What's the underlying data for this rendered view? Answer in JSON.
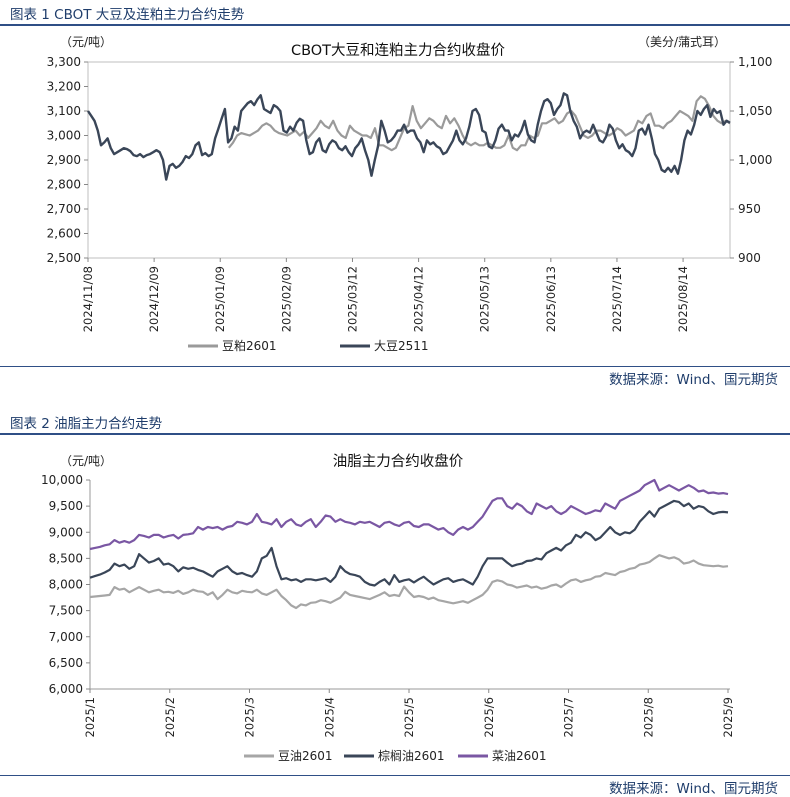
{
  "figure1": {
    "heading": "图表 1 CBOT 大豆及连粕主力合约走势",
    "source": "数据来源：Wind、国元期货"
  },
  "figure2": {
    "heading": "图表 2 油脂主力合约走势",
    "source": "数据来源：Wind、国元期货"
  },
  "chart_data": [
    {
      "type": "line",
      "title": "CBOT大豆和连粕主力合约收盘价",
      "ylabel_left": "（元/吨）",
      "ylabel_right": "（美分/蒲式耳）",
      "ylim_left": [
        2500,
        3300
      ],
      "ylim_right": [
        900,
        1100
      ],
      "yticks_left": [
        "2,500",
        "2,600",
        "2,700",
        "2,800",
        "2,900",
        "3,000",
        "3,100",
        "3,200",
        "3,300"
      ],
      "yticks_right": [
        "900",
        "950",
        "1,000",
        "1,050",
        "1,100"
      ],
      "x_tick_labels": [
        "2024/11/08",
        "2024/12/09",
        "2025/01/09",
        "2025/02/09",
        "2025/03/12",
        "2025/04/12",
        "2025/05/13",
        "2025/06/13",
        "2025/07/14",
        "2025/08/14"
      ],
      "grid": false,
      "legend_position": "bottom",
      "colors": {
        "豆粕2601": "#9a9a9a",
        "大豆2511": "#3a4658"
      },
      "series": [
        {
          "name": "豆粕2601",
          "axis": "left",
          "x_start": "2025-01-13",
          "values": [
            2950,
            2970,
            3000,
            3010,
            3005,
            3000,
            3010,
            3020,
            3040,
            3050,
            3040,
            3020,
            3010,
            3005,
            3000,
            3010,
            3020,
            3000,
            3015,
            2990,
            3010,
            3030,
            3060,
            3040,
            3030,
            3060,
            3020,
            3000,
            2990,
            3040,
            3020,
            3010,
            3000,
            3000,
            2990,
            3030,
            2960,
            2960,
            2950,
            2940,
            2950,
            2990,
            3030,
            3040,
            3120,
            3060,
            3030,
            3050,
            3070,
            3060,
            3040,
            3030,
            3080,
            3050,
            3070,
            3040,
            3000,
            2970,
            2960,
            2970,
            2960,
            2960,
            2970,
            2960,
            2950,
            2950,
            2960,
            3000,
            2950,
            2940,
            2960,
            2960,
            3000,
            2990,
            3000,
            3050,
            3050,
            3060,
            3070,
            3050,
            3060,
            3090,
            3100,
            3080,
            3040,
            3000,
            2990,
            3000,
            3020,
            3020,
            3010,
            3000,
            3010,
            3030,
            3020,
            3000,
            3010,
            3020,
            3060,
            3050,
            3080,
            3090,
            3040,
            3040,
            3030,
            3050,
            3060,
            3080,
            3100,
            3090,
            3080,
            3060,
            3140,
            3160,
            3150,
            3120,
            3080,
            3060,
            3050,
            3060,
            3050
          ]
        },
        {
          "name": "大豆2511",
          "axis": "right",
          "x_start": "2024-11-08",
          "values": [
            1050,
            1045,
            1040,
            1030,
            1015,
            1018,
            1022,
            1012,
            1006,
            1008,
            1010,
            1012,
            1011,
            1009,
            1005,
            1004,
            1006,
            1003,
            1005,
            1006,
            1008,
            1010,
            1008,
            1000,
            980,
            994,
            996,
            992,
            994,
            998,
            1004,
            1002,
            1006,
            1015,
            1018,
            1005,
            1007,
            1004,
            1006,
            1022,
            1032,
            1042,
            1052,
            1018,
            1022,
            1034,
            1030,
            1050,
            1054,
            1058,
            1060,
            1056,
            1062,
            1066,
            1052,
            1050,
            1048,
            1056,
            1054,
            1050,
            1030,
            1028,
            1034,
            1030,
            1038,
            1042,
            1040,
            1020,
            1006,
            1008,
            1018,
            1022,
            1010,
            1008,
            1016,
            1020,
            1018,
            1012,
            1010,
            1014,
            1008,
            1004,
            1012,
            1016,
            1022,
            1010,
            1000,
            984,
            1000,
            1014,
            1040,
            1030,
            1018,
            1020,
            1024,
            1030,
            1030,
            1036,
            1028,
            1030,
            1030,
            1022,
            1018,
            1008,
            1020,
            1016,
            1018,
            1014,
            1012,
            1006,
            1008,
            1014,
            1020,
            1030,
            1020,
            1016,
            1022,
            1034,
            1050,
            1052,
            1046,
            1030,
            1028,
            1014,
            1012,
            1020,
            1032,
            1036,
            1030,
            1030,
            1020,
            1026,
            1024,
            1030,
            1040,
            1026,
            1020,
            1018,
            1036,
            1050,
            1060,
            1062,
            1058,
            1046,
            1052,
            1056,
            1068,
            1066,
            1050,
            1040,
            1034,
            1022,
            1028,
            1030,
            1028,
            1036,
            1028,
            1020,
            1018,
            1024,
            1036,
            1032,
            1020,
            1012,
            1016,
            1010,
            1008,
            1004,
            1012,
            1030,
            1032,
            1026,
            1036,
            1022,
            1006,
            1000,
            990,
            988,
            992,
            988,
            994,
            986,
            1000,
            1020,
            1030,
            1026,
            1036,
            1050,
            1046,
            1052,
            1056,
            1044,
            1052,
            1048,
            1050,
            1036,
            1040,
            1038
          ]
        }
      ]
    },
    {
      "type": "line",
      "title": "油脂主力合约收盘价",
      "ylabel": "（元/吨）",
      "ylim": [
        6000,
        10000
      ],
      "yticks": [
        "6,000",
        "6,500",
        "7,000",
        "7,500",
        "8,000",
        "8,500",
        "9,000",
        "9,500",
        "10,000"
      ],
      "x_tick_labels": [
        "2025/1",
        "2025/2",
        "2025/3",
        "2025/4",
        "2025/5",
        "2025/6",
        "2025/7",
        "2025/8",
        "2025/9"
      ],
      "grid": false,
      "legend_position": "bottom",
      "colors": {
        "豆油2601": "#a6a6a6",
        "棕榈油2601": "#3a4658",
        "菜油2601": "#7a57a3"
      },
      "series": [
        {
          "name": "豆油2601",
          "values": [
            7760,
            7770,
            7780,
            7790,
            7800,
            7950,
            7900,
            7920,
            7850,
            7900,
            7950,
            7900,
            7850,
            7880,
            7900,
            7850,
            7860,
            7840,
            7880,
            7820,
            7850,
            7900,
            7870,
            7860,
            7800,
            7850,
            7720,
            7800,
            7900,
            7850,
            7830,
            7880,
            7860,
            7850,
            7900,
            7830,
            7800,
            7850,
            7900,
            7780,
            7700,
            7600,
            7550,
            7620,
            7600,
            7650,
            7660,
            7700,
            7680,
            7650,
            7700,
            7750,
            7860,
            7800,
            7780,
            7760,
            7740,
            7720,
            7760,
            7800,
            7850,
            7780,
            7800,
            7780,
            7960,
            7850,
            7760,
            7780,
            7760,
            7720,
            7750,
            7700,
            7680,
            7660,
            7640,
            7660,
            7680,
            7650,
            7700,
            7750,
            7800,
            7900,
            8050,
            8080,
            8060,
            8000,
            7980,
            7940,
            7960,
            7980,
            7940,
            7960,
            7920,
            7940,
            7980,
            8000,
            7950,
            8020,
            8080,
            8100,
            8050,
            8080,
            8100,
            8150,
            8160,
            8220,
            8200,
            8180,
            8240,
            8260,
            8300,
            8320,
            8380,
            8400,
            8430,
            8500,
            8560,
            8530,
            8500,
            8520,
            8480,
            8400,
            8420,
            8460,
            8400,
            8370,
            8360,
            8350,
            8360,
            8340,
            8350
          ]
        },
        {
          "name": "棕榈油2601",
          "values": [
            8130,
            8160,
            8190,
            8230,
            8280,
            8400,
            8350,
            8380,
            8300,
            8350,
            8580,
            8500,
            8420,
            8450,
            8500,
            8380,
            8400,
            8350,
            8250,
            8330,
            8300,
            8320,
            8280,
            8250,
            8200,
            8150,
            8250,
            8300,
            8350,
            8250,
            8200,
            8220,
            8180,
            8150,
            8250,
            8500,
            8550,
            8700,
            8350,
            8100,
            8120,
            8080,
            8100,
            8050,
            8100,
            8100,
            8080,
            8100,
            8120,
            8050,
            8150,
            8350,
            8250,
            8200,
            8180,
            8150,
            8050,
            8000,
            7980,
            8050,
            8100,
            8000,
            8180,
            8050,
            8080,
            8100,
            8040,
            8100,
            8150,
            8070,
            8000,
            8050,
            8100,
            8120,
            8050,
            8080,
            8100,
            8050,
            8000,
            8150,
            8350,
            8500,
            8500,
            8500,
            8500,
            8420,
            8350,
            8380,
            8400,
            8450,
            8460,
            8500,
            8480,
            8600,
            8650,
            8700,
            8650,
            8750,
            8800,
            8950,
            8900,
            9000,
            8950,
            8850,
            8900,
            9000,
            9100,
            9000,
            8950,
            9000,
            8980,
            9050,
            9200,
            9300,
            9400,
            9300,
            9450,
            9500,
            9550,
            9600,
            9580,
            9500,
            9550,
            9450,
            9500,
            9480,
            9400,
            9350,
            9380,
            9390,
            9380
          ]
        },
        {
          "name": "菜油2601",
          "values": [
            8680,
            8700,
            8720,
            8750,
            8770,
            8850,
            8800,
            8830,
            8800,
            8850,
            8950,
            8930,
            8900,
            8950,
            8950,
            8900,
            8930,
            8950,
            8880,
            8950,
            8960,
            8980,
            9100,
            9050,
            9100,
            9080,
            9100,
            9050,
            9100,
            9120,
            9200,
            9180,
            9150,
            9200,
            9350,
            9200,
            9180,
            9150,
            9250,
            9100,
            9200,
            9250,
            9150,
            9120,
            9200,
            9250,
            9100,
            9200,
            9320,
            9300,
            9200,
            9250,
            9200,
            9180,
            9150,
            9200,
            9180,
            9200,
            9150,
            9100,
            9180,
            9200,
            9150,
            9120,
            9180,
            9200,
            9120,
            9100,
            9150,
            9150,
            9100,
            9050,
            9080,
            9000,
            8950,
            9050,
            9100,
            9050,
            9100,
            9200,
            9300,
            9450,
            9600,
            9650,
            9650,
            9500,
            9450,
            9550,
            9500,
            9400,
            9350,
            9550,
            9500,
            9450,
            9500,
            9400,
            9350,
            9400,
            9500,
            9450,
            9400,
            9350,
            9380,
            9420,
            9400,
            9550,
            9500,
            9450,
            9600,
            9650,
            9700,
            9750,
            9800,
            9900,
            9950,
            10000,
            9800,
            9850,
            9900,
            9850,
            9800,
            9850,
            9900,
            9850,
            9780,
            9800,
            9750,
            9760,
            9740,
            9750,
            9730
          ]
        }
      ]
    }
  ]
}
